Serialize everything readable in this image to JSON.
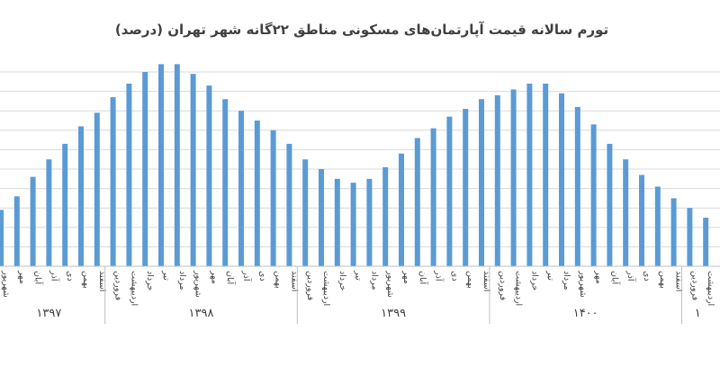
{
  "chart_data": {
    "type": "bar",
    "title": "تورم سالانه قیمت آپارتمان‌های مسکونی مناطق ۲۲گانه شهر تهران (درصد)",
    "xlabel": "",
    "ylabel": "",
    "color": "#5b9bd5",
    "grid": true,
    "legend": "none",
    "ylim": [
      0,
      100
    ],
    "categories": [
      "شهریور",
      "مهر",
      "آبان",
      "آذر",
      "دی",
      "بهمن",
      "اسفند",
      "فروردین",
      "اردیبهشت",
      "خرداد",
      "تیر",
      "مرداد",
      "شهریور",
      "مهر",
      "آبان",
      "آذر",
      "دی",
      "بهمن",
      "اسفند",
      "فروردین",
      "اردیبهشت",
      "خرداد",
      "تیر",
      "مرداد",
      "شهریور",
      "مهر",
      "آبان",
      "آذر",
      "دی",
      "بهمن",
      "اسفند",
      "فروردین",
      "اردیبهشت",
      "خرداد",
      "تیر",
      "مرداد",
      "شهریور",
      "مهر",
      "آبان",
      "آذر",
      "دی",
      "بهمن",
      "اسفند",
      "فروردین",
      "اردیبهشت"
    ],
    "values": [
      29,
      36,
      46,
      55,
      63,
      72,
      79,
      87,
      94,
      100,
      104,
      104,
      99,
      93,
      86,
      80,
      75,
      70,
      63,
      55,
      50,
      45,
      43,
      45,
      51,
      58,
      66,
      71,
      77,
      81,
      86,
      88,
      91,
      94,
      94,
      89,
      82,
      73,
      63,
      55,
      47,
      41,
      35,
      30,
      25
    ],
    "years": [
      {
        "label": "۱۳۹۷",
        "start": 0,
        "end": 6
      },
      {
        "label": "۱۳۹۸",
        "start": 7,
        "end": 18
      },
      {
        "label": "۱۳۹۹",
        "start": 19,
        "end": 30
      },
      {
        "label": "۱۴۰۰",
        "start": 31,
        "end": 42
      },
      {
        "label": "۱",
        "start": 43,
        "end": 44
      }
    ]
  }
}
